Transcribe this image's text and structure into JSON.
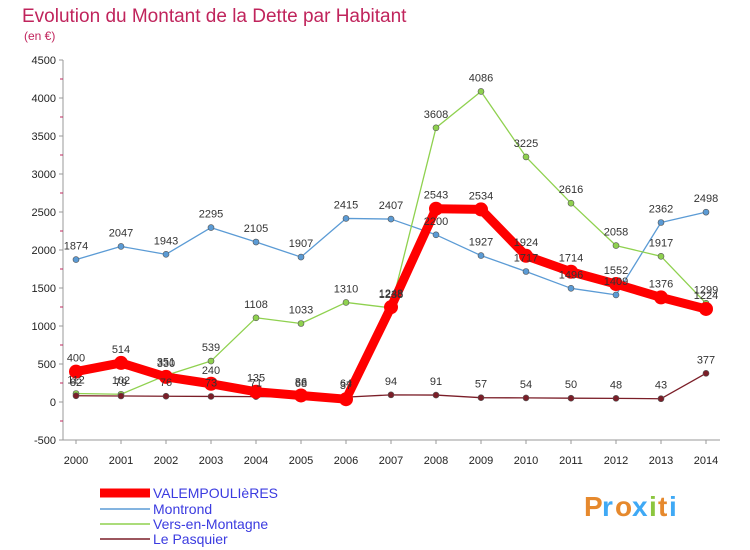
{
  "chart_data": {
    "type": "line",
    "title": "Evolution du Montant de la Dette par Habitant",
    "subtitle": "(en €)",
    "xlabel": "",
    "ylabel": "",
    "x": [
      "2000",
      "2001",
      "2002",
      "2003",
      "2004",
      "2005",
      "2006",
      "2007",
      "2008",
      "2009",
      "2010",
      "2011",
      "2012",
      "2013",
      "2014"
    ],
    "ylim": [
      -500,
      4500
    ],
    "yticks": [
      "-500",
      "0",
      "500",
      "1000",
      "1500",
      "2000",
      "2500",
      "3000",
      "3500",
      "4000",
      "4500"
    ],
    "grid": false,
    "legend_position": "bottom-left",
    "series": [
      {
        "name": "VALEMPOULIèRES",
        "color": "#ff0000",
        "values": [
          400,
          514,
          330,
          240,
          135,
          86,
          37,
          1248,
          2543,
          2534,
          1924,
          1714,
          1552,
          1376,
          1224
        ],
        "labels": [
          "400",
          "514",
          "330",
          "240",
          "135",
          "86",
          "37",
          "1248",
          "2543",
          "2534",
          "1924",
          "1714",
          "1552",
          "1376",
          "1224"
        ]
      },
      {
        "name": "Montrond",
        "color": "#5b9bd5",
        "values": [
          1874,
          2047,
          1943,
          2295,
          2105,
          1907,
          2415,
          2407,
          2200,
          1927,
          1717,
          1496,
          1409,
          2362,
          2498
        ],
        "labels": [
          "1874",
          "2047",
          "1943",
          "2295",
          "2105",
          "1907",
          "2415",
          "2407",
          "2200",
          "1927",
          "1717",
          "1496",
          "1409",
          "2362",
          "2498"
        ]
      },
      {
        "name": "Vers-en-Montagne",
        "color": "#8fd14f",
        "values": [
          112,
          102,
          351,
          539,
          1108,
          1033,
          1310,
          1238,
          3608,
          4086,
          3225,
          2616,
          2058,
          1917,
          1299
        ],
        "labels": [
          "112",
          "102",
          "351",
          "539",
          "1108",
          "1033",
          "1310",
          "1238",
          "3608",
          "4086",
          "3225",
          "2616",
          "2058",
          "1917",
          "1299"
        ]
      },
      {
        "name": "Le Pasquier",
        "color": "#7b1e28",
        "values": [
          82,
          79,
          76,
          73,
          71,
          68,
          64,
          94,
          91,
          57,
          54,
          50,
          48,
          43,
          377
        ],
        "labels": [
          "82",
          "79",
          "76",
          "73",
          "71",
          "68",
          "64",
          "94",
          "91",
          "57",
          "54",
          "50",
          "48",
          "43",
          "377"
        ]
      }
    ]
  },
  "logo": {
    "text": "Proxiti",
    "colors": [
      "#e6892d",
      "#3fa9f5",
      "#e6892d",
      "#3fa9f5",
      "#8cc63f",
      "#e6892d",
      "#3fa9f5"
    ]
  }
}
